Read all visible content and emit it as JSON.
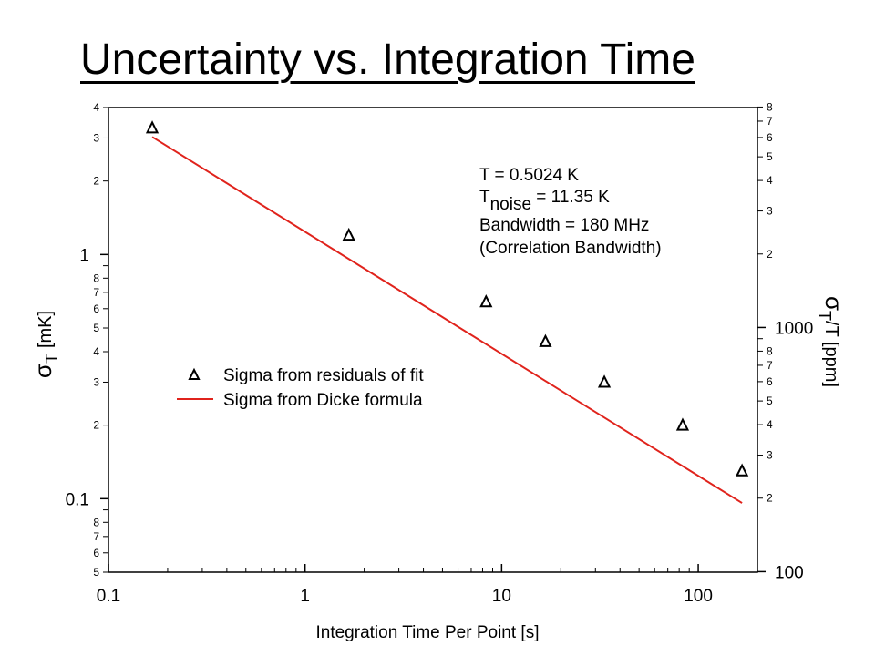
{
  "title": "Uncertainty vs. Integration Time",
  "chart_data": {
    "type": "scatter",
    "xlabel": "Integration Time Per Point [s]",
    "ylabel_left_symbol": "σ",
    "ylabel_left_sub": "T",
    "ylabel_left_unit": "[mK]",
    "ylabel_right_symbol": "σ",
    "ylabel_right_sub": "T",
    "ylabel_right_unit": "/T [ppm]",
    "x_scale": "log",
    "y_scale": "log",
    "xlim": [
      0.1,
      200
    ],
    "ylim_left": [
      0.05,
      4
    ],
    "ylim_right": [
      99.5,
      7961
    ],
    "x_major_ticks": [
      "0.1",
      "1",
      "10",
      "100"
    ],
    "y_left_ticks": {
      "major": [
        "1",
        "0.1"
      ],
      "minor_labels": [
        "4",
        "3",
        "2",
        "8",
        "7",
        "6",
        "5",
        "4",
        "3",
        "2",
        "8",
        "7",
        "6",
        "5"
      ]
    },
    "y_right_ticks": {
      "major": [
        "1000",
        "100"
      ],
      "minor_labels": [
        "8",
        "7",
        "6",
        "5",
        "4",
        "3",
        "2",
        "8",
        "7",
        "6",
        "5",
        "4",
        "3",
        "2"
      ]
    },
    "annotation": {
      "line1": "T = 0.5024 K",
      "line2_main": "T",
      "line2_sub": "noise",
      "line2_rest": " = 11.35 K",
      "line3": "Bandwidth = 180 MHz",
      "line4": "(Correlation Bandwidth)"
    },
    "legend_position": "lower-left",
    "series": [
      {
        "name": "Sigma from residuals of fit",
        "kind": "markers",
        "marker": "triangle-open",
        "color": "#000000",
        "x": [
          0.167,
          1.67,
          8.33,
          16.7,
          33.3,
          83.3,
          167
        ],
        "y": [
          3.3,
          1.2,
          0.64,
          0.44,
          0.3,
          0.2,
          0.13
        ]
      },
      {
        "name": "Sigma from Dicke formula",
        "kind": "line",
        "color": "#e0231c",
        "x": [
          0.167,
          167
        ],
        "y": [
          3.03,
          0.096
        ]
      }
    ]
  }
}
